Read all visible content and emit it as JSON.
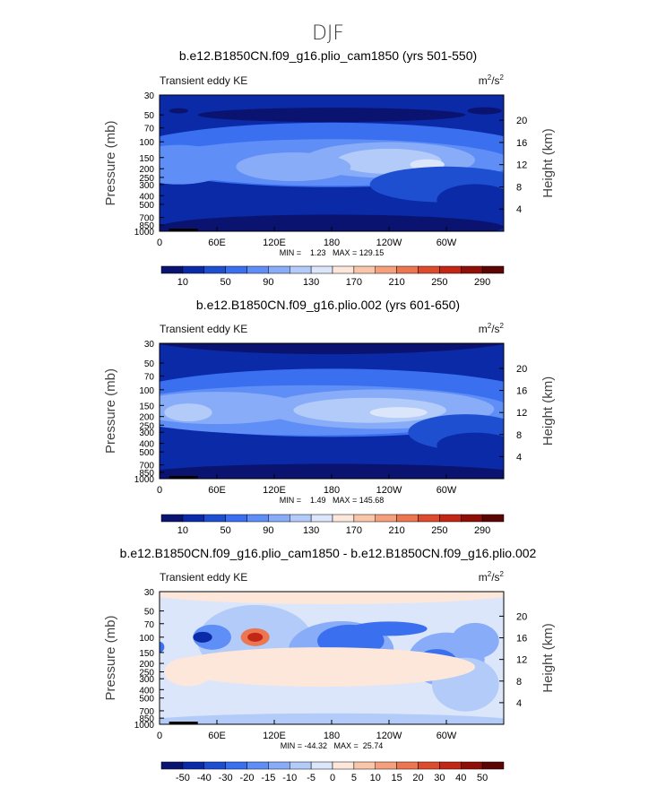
{
  "figure": {
    "title": "DJF"
  },
  "chart_data": [
    {
      "type": "heatmap",
      "title": "b.e12.B1850CN.f09_g16.plio_cam1850 (yrs 501-550)",
      "left_label": "Transient eddy KE",
      "units_base": "m",
      "units_exp1": "2",
      "units_mid": "/s",
      "units_exp2": "2",
      "ylabel": "Pressure (mb)",
      "ylabel_right": "Height (km)",
      "x_ticks": [
        "0",
        "60E",
        "120E",
        "180",
        "120W",
        "60W"
      ],
      "x_tick_lon": [
        0,
        60,
        120,
        180,
        240,
        300
      ],
      "xlim": [
        0,
        360
      ],
      "y_ticks": [
        "30",
        "50",
        "70",
        "100",
        "150",
        "200",
        "250",
        "300",
        "400",
        "500",
        "700",
        "850",
        "1000"
      ],
      "y_tick_p": [
        30,
        50,
        70,
        100,
        150,
        200,
        250,
        300,
        400,
        500,
        700,
        850,
        1000
      ],
      "ylim": [
        30,
        1000
      ],
      "y_scale": "log",
      "height_ticks": [
        "4",
        "8",
        "12",
        "16",
        "20"
      ],
      "height_km": [
        4,
        8,
        12,
        16,
        20
      ],
      "min_max_text": "MIN =    1.23   MAX = 129.15",
      "colorbar_labels": [
        "10",
        "50",
        "90",
        "130",
        "170",
        "210",
        "250",
        "290"
      ],
      "colors": [
        "#0a1470",
        "#0b2aa8",
        "#1f4fd1",
        "#3a6ff0",
        "#5f8ff6",
        "#88acf7",
        "#b2cbf9",
        "#dbe6fb",
        "#fde7db",
        "#f9c6aa",
        "#f4a07c",
        "#ec7650",
        "#dd4b2e",
        "#c22615",
        "#8f0f08",
        "#5c0505"
      ]
    },
    {
      "type": "heatmap",
      "title": "b.e12.B1850CN.f09_g16.plio.002 (yrs 601-650)",
      "left_label": "Transient eddy KE",
      "units_base": "m",
      "units_exp1": "2",
      "units_mid": "/s",
      "units_exp2": "2",
      "ylabel": "Pressure (mb)",
      "ylabel_right": "Height (km)",
      "x_ticks": [
        "0",
        "60E",
        "120E",
        "180",
        "120W",
        "60W"
      ],
      "x_tick_lon": [
        0,
        60,
        120,
        180,
        240,
        300
      ],
      "xlim": [
        0,
        360
      ],
      "y_ticks": [
        "30",
        "50",
        "70",
        "100",
        "150",
        "200",
        "250",
        "300",
        "400",
        "500",
        "700",
        "850",
        "1000"
      ],
      "y_tick_p": [
        30,
        50,
        70,
        100,
        150,
        200,
        250,
        300,
        400,
        500,
        700,
        850,
        1000
      ],
      "ylim": [
        30,
        1000
      ],
      "y_scale": "log",
      "height_ticks": [
        "4",
        "8",
        "12",
        "16",
        "20"
      ],
      "height_km": [
        4,
        8,
        12,
        16,
        20
      ],
      "min_max_text": "MIN =    1.49   MAX = 145.68",
      "colorbar_labels": [
        "10",
        "50",
        "90",
        "130",
        "170",
        "210",
        "250",
        "290"
      ],
      "colors": [
        "#0a1470",
        "#0b2aa8",
        "#1f4fd1",
        "#3a6ff0",
        "#5f8ff6",
        "#88acf7",
        "#b2cbf9",
        "#dbe6fb",
        "#fde7db",
        "#f9c6aa",
        "#f4a07c",
        "#ec7650",
        "#dd4b2e",
        "#c22615",
        "#8f0f08",
        "#5c0505"
      ]
    },
    {
      "type": "heatmap",
      "title": "b.e12.B1850CN.f09_g16.plio_cam1850 - b.e12.B1850CN.f09_g16.plio.002",
      "left_label": "Transient eddy KE",
      "units_base": "m",
      "units_exp1": "2",
      "units_mid": "/s",
      "units_exp2": "2",
      "ylabel": "Pressure (mb)",
      "ylabel_right": "Height (km)",
      "x_ticks": [
        "0",
        "60E",
        "120E",
        "180",
        "120W",
        "60W"
      ],
      "x_tick_lon": [
        0,
        60,
        120,
        180,
        240,
        300
      ],
      "xlim": [
        0,
        360
      ],
      "y_ticks": [
        "30",
        "50",
        "70",
        "100",
        "150",
        "200",
        "250",
        "300",
        "400",
        "500",
        "700",
        "850",
        "1000"
      ],
      "y_tick_p": [
        30,
        50,
        70,
        100,
        150,
        200,
        250,
        300,
        400,
        500,
        700,
        850,
        1000
      ],
      "ylim": [
        30,
        1000
      ],
      "y_scale": "log",
      "height_ticks": [
        "4",
        "8",
        "12",
        "16",
        "20"
      ],
      "height_km": [
        4,
        8,
        12,
        16,
        20
      ],
      "min_max_text": "MIN = -44.32   MAX =  25.74",
      "colorbar_labels": [
        "-50",
        "-40",
        "-30",
        "-20",
        "-15",
        "-10",
        "-5",
        "0",
        "5",
        "10",
        "15",
        "20",
        "30",
        "40",
        "50"
      ],
      "colors": [
        "#0a1470",
        "#0b2aa8",
        "#1f4fd1",
        "#3a6ff0",
        "#5f8ff6",
        "#88acf7",
        "#b2cbf9",
        "#dbe6fb",
        "#fde7db",
        "#f9c6aa",
        "#f4a07c",
        "#ec7650",
        "#dd4b2e",
        "#c22615",
        "#8f0f08",
        "#5c0505"
      ]
    }
  ]
}
